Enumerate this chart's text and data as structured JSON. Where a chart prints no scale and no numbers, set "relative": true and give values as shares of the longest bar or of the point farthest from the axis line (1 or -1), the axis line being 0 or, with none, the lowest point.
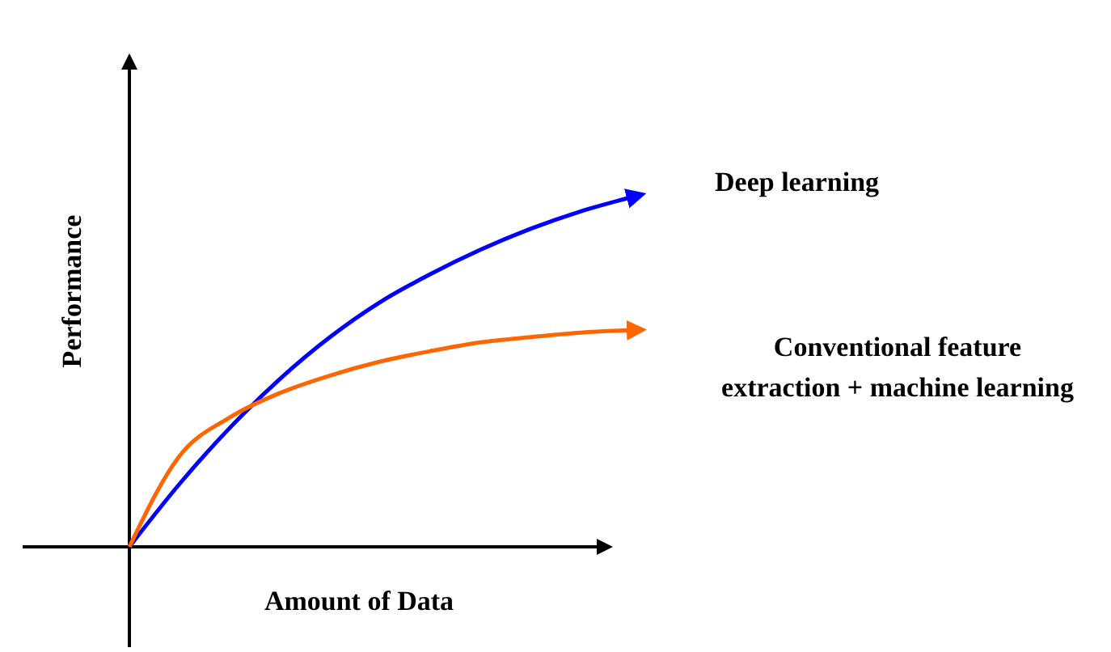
{
  "chart_data": {
    "type": "line",
    "relative": true,
    "xlabel": "Amount of Data",
    "ylabel": "Performance",
    "categories": [
      null,
      null,
      null,
      null,
      null,
      null,
      null,
      null,
      null,
      null,
      null
    ],
    "series": [
      {
        "name": "Deep learning",
        "color": "#0000ff",
        "values": [
          0,
          0.18,
          0.34,
          0.48,
          0.6,
          0.7,
          0.78,
          0.85,
          0.91,
          0.96,
          1
        ]
      },
      {
        "name": "Conventional feature extraction + machine learning",
        "color": "#ff6600",
        "values": [
          0,
          0.26,
          0.37,
          0.44,
          0.49,
          0.53,
          0.56,
          0.585,
          0.6,
          0.613,
          0.62
        ]
      }
    ]
  }
}
